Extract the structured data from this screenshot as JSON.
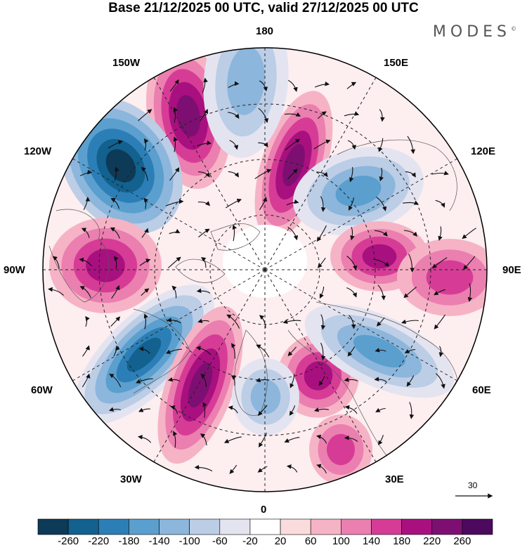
{
  "header": {
    "title": "Base 21/12/2025 00 UTC, valid 27/12/2025 00 UTC",
    "brand": "MODES",
    "brand_mark": "©"
  },
  "map": {
    "projection": "north-polar-stereographic",
    "longitude_labels": {
      "top": "180",
      "bottom": "0",
      "left": "90W",
      "right": "90E",
      "upper_left": "150W",
      "upper_right": "150E",
      "mid_upper_left": "120W",
      "mid_upper_right": "120E",
      "mid_lower_left": "60W",
      "mid_lower_right": "60E",
      "lower_left": "30W",
      "lower_right": "30E"
    },
    "vector_scale_label": "30",
    "anomaly_centers": [
      {
        "sign": "positive",
        "peak": 260,
        "location": "150W sector"
      },
      {
        "sign": "negative",
        "peak": -260,
        "location": "120W sector"
      },
      {
        "sign": "positive",
        "peak": 260,
        "location": "near pole toward 165E"
      },
      {
        "sign": "negative",
        "peak": -140,
        "location": "120E sector"
      },
      {
        "sign": "positive",
        "peak": 220,
        "location": "90W sector"
      },
      {
        "sign": "positive",
        "peak": 180,
        "location": "90E sector"
      },
      {
        "sign": "negative",
        "peak": -220,
        "location": "60W sector"
      },
      {
        "sign": "positive",
        "peak": 260,
        "location": "45W sector"
      },
      {
        "sign": "positive",
        "peak": 220,
        "location": "30E sector"
      },
      {
        "sign": "negative",
        "peak": -140,
        "location": "60E sector"
      }
    ]
  },
  "colorbar": {
    "tick_labels": [
      "-260",
      "-220",
      "-180",
      "-140",
      "-100",
      "-60",
      "-20",
      "20",
      "60",
      "100",
      "140",
      "180",
      "220",
      "260"
    ],
    "colors": [
      "#0d3a57",
      "#12618f",
      "#2c7fb6",
      "#5a9fce",
      "#8cb6dc",
      "#bccde6",
      "#e4e4f1",
      "#ffffff",
      "#fbdcdc",
      "#f6b3c6",
      "#eb7fb0",
      "#d63c96",
      "#a8107f",
      "#7e0f72",
      "#4b0a5e"
    ]
  }
}
